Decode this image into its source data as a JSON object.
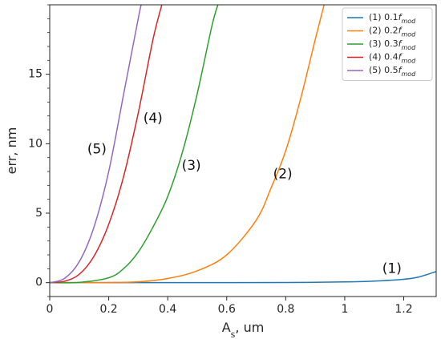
{
  "chart_data": {
    "type": "line",
    "title": "",
    "xlabel": "A_s, um",
    "ylabel": "err, nm",
    "xlim": [
      0,
      1.31
    ],
    "ylim": [
      -1,
      20
    ],
    "xticks": [
      0,
      0.2,
      0.4,
      0.6,
      0.8,
      1,
      1.2
    ],
    "xtick_labels": [
      "0",
      "0.2",
      "0.4",
      "0.6",
      "0.8",
      "1",
      "1.2"
    ],
    "yticks": [
      0,
      5,
      10,
      15
    ],
    "ytick_labels": [
      "0",
      "5",
      "10",
      "15"
    ],
    "y_minor_step": 1,
    "grid": false,
    "legend_position": "top-right",
    "series": [
      {
        "name": "(1)  0.1f_mod",
        "legend_prefix": "(1)  0.1",
        "legend_symbol": "f",
        "legend_sub": "mod",
        "curve_label": "(1)",
        "color": "#1f77b4",
        "x": [
          0,
          0.2,
          0.4,
          0.6,
          0.8,
          1.0,
          1.1,
          1.2,
          1.25,
          1.31
        ],
        "y": [
          0,
          0,
          0,
          0,
          0.01,
          0.05,
          0.11,
          0.24,
          0.4,
          0.8
        ]
      },
      {
        "name": "(2)  0.2f_mod",
        "legend_prefix": "(2)  0.2",
        "legend_symbol": "f",
        "legend_sub": "mod",
        "curve_label": "(2)",
        "color": "#ff7f0e",
        "x": [
          0,
          0.1,
          0.2,
          0.3,
          0.4,
          0.5,
          0.6,
          0.7,
          0.75,
          0.8,
          0.85,
          0.9,
          0.93
        ],
        "y": [
          0,
          0,
          0.01,
          0.06,
          0.3,
          0.85,
          2.0,
          4.5,
          6.8,
          9.5,
          13.2,
          17.5,
          20
        ]
      },
      {
        "name": "(3)  0.3f_mod",
        "legend_prefix": "(3)  0.3",
        "legend_symbol": "f",
        "legend_sub": "mod",
        "curve_label": "(3)",
        "color": "#2ca02c",
        "x": [
          0,
          0.1,
          0.2,
          0.25,
          0.3,
          0.35,
          0.4,
          0.45,
          0.5,
          0.55,
          0.57
        ],
        "y": [
          0,
          0.02,
          0.35,
          1.0,
          2.2,
          4.0,
          6.2,
          9.4,
          13.6,
          18.5,
          20
        ]
      },
      {
        "name": "(4)  0.4f_mod",
        "legend_prefix": "(4)  0.4",
        "legend_symbol": "f",
        "legend_sub": "mod",
        "curve_label": "(4)",
        "color": "#d62728",
        "x": [
          0,
          0.05,
          0.1,
          0.15,
          0.2,
          0.25,
          0.3,
          0.35,
          0.38
        ],
        "y": [
          0,
          0.1,
          0.6,
          1.9,
          4.2,
          7.6,
          12.2,
          17.5,
          20
        ]
      },
      {
        "name": "(5)  0.5f_mod",
        "legend_prefix": "(5)  0.5",
        "legend_symbol": "f",
        "legend_sub": "mod",
        "curve_label": "(5)",
        "color": "#9467bd",
        "x": [
          0,
          0.05,
          0.1,
          0.15,
          0.2,
          0.25,
          0.3,
          0.31
        ],
        "y": [
          0,
          0.3,
          1.5,
          4.0,
          8.0,
          13.5,
          19.0,
          20
        ]
      }
    ],
    "annotations": [
      {
        "text": "(1)",
        "x": 1.16,
        "y": 1.0
      },
      {
        "text": "(2)",
        "x": 0.79,
        "y": 7.8
      },
      {
        "text": "(3)",
        "x": 0.48,
        "y": 8.4
      },
      {
        "text": "(4)",
        "x": 0.35,
        "y": 11.8
      },
      {
        "text": "(5)",
        "x": 0.16,
        "y": 9.6
      }
    ]
  }
}
